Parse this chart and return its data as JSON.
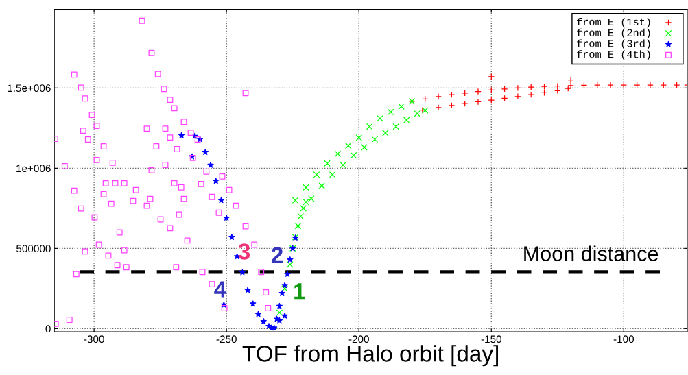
{
  "chart_data": {
    "type": "scatter",
    "xlabel": "TOF from Halo orbit [day]",
    "xlim": [
      -315,
      -76
    ],
    "ylim": [
      -20000,
      1990000
    ],
    "xticks": [
      -300,
      -250,
      -200,
      -150,
      -100
    ],
    "yticks": [
      0,
      500000,
      {
        "value": 1000000,
        "label": "1e+006"
      },
      {
        "value": 1500000,
        "label": "1.5e+006"
      }
    ],
    "grid": true,
    "legend": "top right",
    "series": [
      {
        "name": "from E (1st)",
        "color": "#ff0000",
        "marker": "plus",
        "x": [
          -180,
          -175,
          -170,
          -165,
          -160,
          -155,
          -150,
          -145,
          -140,
          -135,
          -130,
          -125,
          -120,
          -115,
          -110,
          -105,
          -100,
          -95,
          -90,
          -85,
          -80,
          -76,
          -176,
          -170,
          -165,
          -160,
          -155,
          -150,
          -145,
          -140,
          -135,
          -130,
          -125,
          -121,
          -150,
          -120
        ],
        "values": [
          1417000,
          1432000,
          1446000,
          1458000,
          1468000,
          1478000,
          1487000,
          1494000,
          1500000,
          1505000,
          1509000,
          1512000,
          1515000,
          1517000,
          1518000,
          1518000,
          1518000,
          1518000,
          1518000,
          1518000,
          1518000,
          1518000,
          1362000,
          1378000,
          1391000,
          1403000,
          1414000,
          1424000,
          1436000,
          1447000,
          1458000,
          1470000,
          1483000,
          1497000,
          1570000,
          1550000
        ]
      },
      {
        "name": "from E (2nd)",
        "color": "#00ff00",
        "marker": "x",
        "x": [
          -230,
          -228,
          -226,
          -225,
          -224,
          -223,
          -222,
          -221,
          -220,
          -224,
          -220,
          -216,
          -212,
          -208,
          -204,
          -200,
          -196,
          -192,
          -188,
          -184,
          -180,
          -218,
          -214,
          -210,
          -206,
          -202,
          -198,
          -194,
          -190,
          -186,
          -182,
          -178,
          -175
        ],
        "values": [
          100000,
          250000,
          400000,
          500000,
          570000,
          640000,
          700000,
          750000,
          790000,
          800000,
          880000,
          960000,
          1030000,
          1090000,
          1140000,
          1190000,
          1260000,
          1310000,
          1350000,
          1385000,
          1417000,
          810000,
          890000,
          960000,
          1020000,
          1080000,
          1130000,
          1180000,
          1220000,
          1260000,
          1300000,
          1340000,
          1360000
        ]
      },
      {
        "name": "from E (3rd)",
        "color": "#0000ff",
        "marker": "star",
        "x": [
          -262,
          -260,
          -258,
          -256,
          -254,
          -252,
          -250,
          -248,
          -246,
          -244,
          -242,
          -240,
          -238,
          -236,
          -234,
          -233,
          -232,
          -231,
          -230,
          -229,
          -228,
          -227,
          -226,
          -225,
          -224,
          -228,
          -230,
          -267,
          -263,
          -251
        ],
        "values": [
          1200000,
          1180000,
          1100000,
          1020000,
          920000,
          800000,
          690000,
          570000,
          450000,
          350000,
          240000,
          155000,
          90000,
          45000,
          15000,
          5000,
          5000,
          60000,
          140000,
          220000,
          270000,
          340000,
          430000,
          500000,
          566000,
          80000,
          50000,
          1204000,
          1072000,
          149000
        ]
      },
      {
        "name": "from E (4th)",
        "color": "#ff40ff",
        "marker": "square",
        "x": [
          -314.5,
          -309.3,
          -306.7,
          -303.4,
          -299.8,
          -296.4,
          -292,
          -288.6,
          -284.2,
          -280.1,
          -274.9,
          -271.3,
          -267.9,
          -266.1,
          -267.1,
          -307.5,
          -304.9,
          -303.4,
          -300.8,
          -299,
          -296.4,
          -293,
          -285.3,
          -304.1,
          -302.3,
          -299,
          -295.6,
          -298.2,
          -294.6,
          -291.2,
          -287.8,
          -280.1,
          -276.5,
          -273.1,
          -269.7,
          -281.9,
          -278.3,
          -275.9,
          -273.6,
          -271.3,
          -269.7,
          -266.1,
          -263.5,
          -260.9,
          -262.7,
          -257.6,
          -251.6,
          -249,
          -246.4,
          -242.8,
          -239.5,
          -236.9,
          -235.1,
          -234.3,
          -273.1,
          -271.3,
          -268.7,
          -314.7,
          -311.1,
          -307.5,
          -304.9,
          -290.4,
          -288.6,
          -269,
          -264.8,
          -259.6,
          -255.5,
          -252.9,
          -255.5,
          -250.8,
          -259.1,
          -242.8,
          -278.8,
          -293.5,
          -278.3
        ],
        "values": [
          30000,
          55000,
          340000,
          481000,
          694000,
          838000,
          906000,
          906000,
          864000,
          766000,
          681000,
          626000,
          711000,
          809000,
          881000,
          1583000,
          1502000,
          1434000,
          1332000,
          1264000,
          1136000,
          1034000,
          796000,
          1234000,
          1179000,
          1051000,
          906000,
          523000,
          455000,
          396000,
          383000,
          1247000,
          1136000,
          1021000,
          906000,
          1919000,
          1719000,
          1587000,
          1494000,
          1426000,
          1374000,
          1289000,
          1221000,
          1179000,
          1064000,
          979000,
          949000,
          864000,
          766000,
          638000,
          523000,
          353000,
          226000,
          128000,
          1247000,
          1191000,
          1119000,
          1183000,
          1013000,
          860000,
          749000,
          600000,
          489000,
          383000,
          549000,
          902000,
          821000,
          723000,
          277000,
          128000,
          353000,
          1468000,
          809000,
          779000,
          987000
        ]
      }
    ],
    "ref_lines": [
      {
        "axis": "y",
        "value": 355000,
        "label": "Moon distance",
        "color": "#000000",
        "line_style": "dashed"
      }
    ],
    "annotations": [
      "1",
      "2",
      "3",
      "4"
    ]
  }
}
